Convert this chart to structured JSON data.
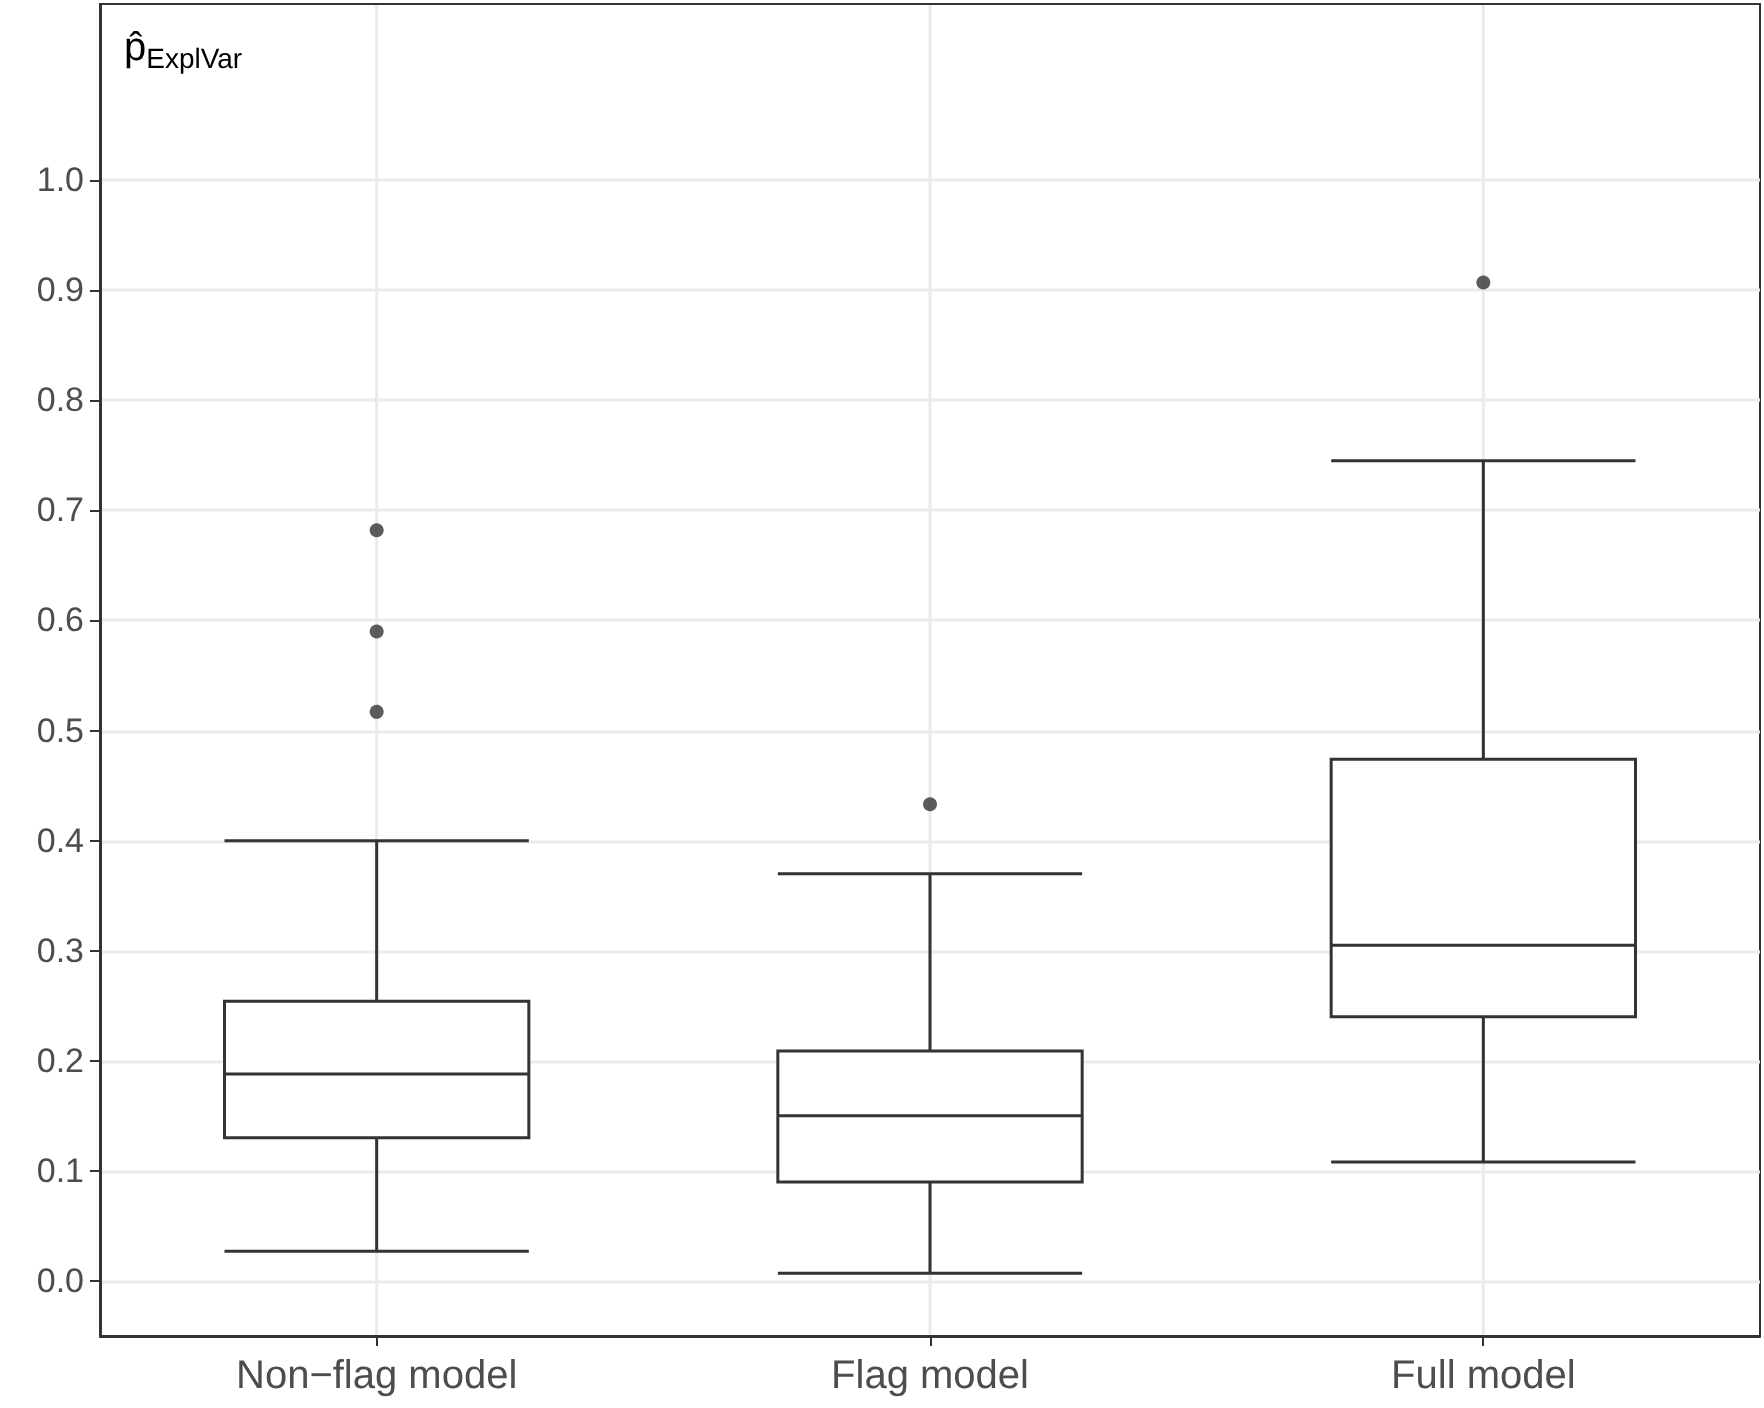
{
  "chart_data": {
    "type": "box",
    "ylabel": "p̂$_{ExplVar}$",
    "categories": [
      "Non−flag model",
      "Flag model",
      "Full model"
    ],
    "boxes": [
      {
        "low": 0.027,
        "q1": 0.13,
        "median": 0.188,
        "q3": 0.254,
        "high": 0.4,
        "outliers": [
          0.517,
          0.59,
          0.682
        ]
      },
      {
        "low": 0.007,
        "q1": 0.09,
        "median": 0.15,
        "q3": 0.209,
        "high": 0.37,
        "outliers": [
          0.433
        ]
      },
      {
        "low": 0.108,
        "q1": 0.24,
        "median": 0.305,
        "q3": 0.474,
        "high": 0.745,
        "outliers": [
          0.907
        ]
      }
    ],
    "color": "#333333",
    "ylim": [
      -0.05,
      1.16
    ],
    "yticks": [
      {
        "value": 0,
        "label": "0.0"
      },
      0.1,
      0.2,
      0.3,
      0.4,
      0.5,
      0.6,
      0.7,
      0.8,
      0.9,
      {
        "value": 1,
        "label": "1.0"
      }
    ],
    "grid": true
  }
}
